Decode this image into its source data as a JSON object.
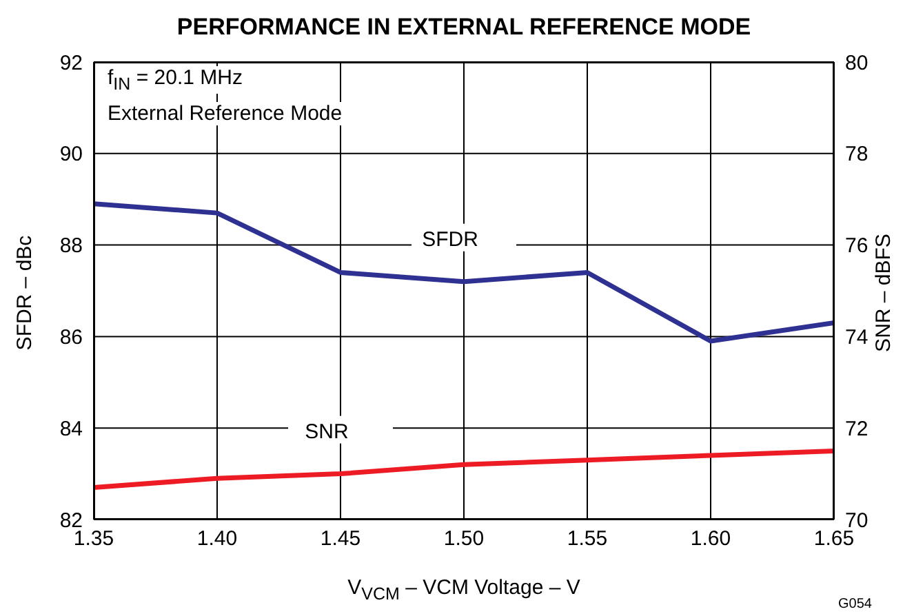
{
  "chart_data": {
    "type": "line",
    "title": "PERFORMANCE IN EXTERNAL REFERENCE MODE",
    "xlabel": "V$_{VCM}$ – VCM Voltage – V",
    "ylabel": "SFDR – dBc",
    "y2label": "SNR – dBFS",
    "annotations": [
      "f$_{IN}$ = 20.1 MHz",
      "External Reference Mode",
      "G054"
    ],
    "x": [
      1.35,
      1.4,
      1.45,
      1.5,
      1.55,
      1.6,
      1.65
    ],
    "series": [
      {
        "name": "SFDR",
        "color": "#2e3192",
        "values": [
          88.9,
          88.7,
          87.4,
          87.2,
          87.4,
          85.9,
          86.3
        ]
      },
      {
        "name": "SNR",
        "color": "#ed1c24",
        "axis": "y2",
        "values": [
          70.7,
          70.9,
          71.0,
          71.2,
          71.3,
          71.4,
          71.5
        ]
      }
    ],
    "xlim": [
      1.35,
      1.65
    ],
    "xticks": [
      1.35,
      {
        "value": 1.4,
        "label": "1.40"
      },
      1.45,
      {
        "value": 1.5,
        "label": "1.50"
      },
      1.55,
      {
        "value": 1.6,
        "label": "1.60"
      },
      1.65
    ],
    "ylim": [
      82,
      92
    ],
    "yticks": [
      82,
      84,
      86,
      88,
      90,
      92
    ],
    "y2lim": [
      70,
      80
    ],
    "y2ticks": [
      70,
      72,
      74,
      76,
      78,
      80
    ],
    "grid": true,
    "marker": "none",
    "line_style": "solid"
  }
}
